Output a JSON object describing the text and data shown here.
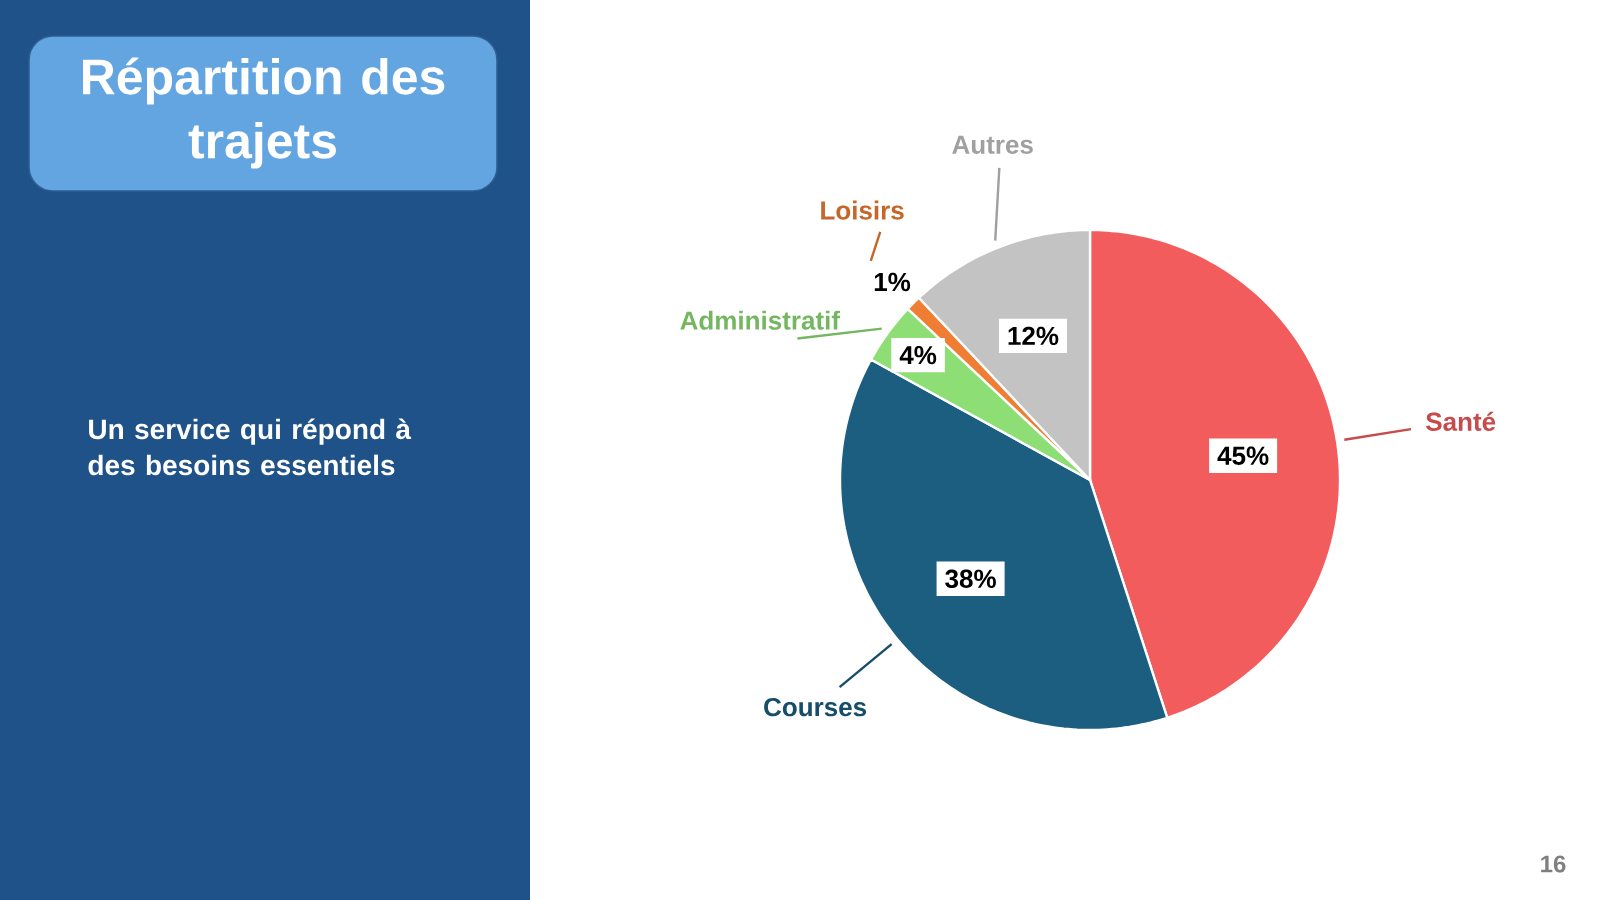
{
  "chart_data": {
    "type": "pie",
    "title": "Répartition des trajets",
    "categories": [
      "Santé",
      "Courses",
      "Administratif",
      "Loisirs",
      "Autres"
    ],
    "values": [
      45,
      38,
      4,
      1,
      12
    ],
    "colors": [
      "#f25c5c",
      "#1b5e80",
      "#8ede76",
      "#ef7d33",
      "#c3c3c3"
    ],
    "value_labels": [
      "45%",
      "38%",
      "4%",
      "1%",
      "12%"
    ],
    "annotations": [
      "Un service qui répond à des besoins essentiels",
      "16"
    ]
  }
}
